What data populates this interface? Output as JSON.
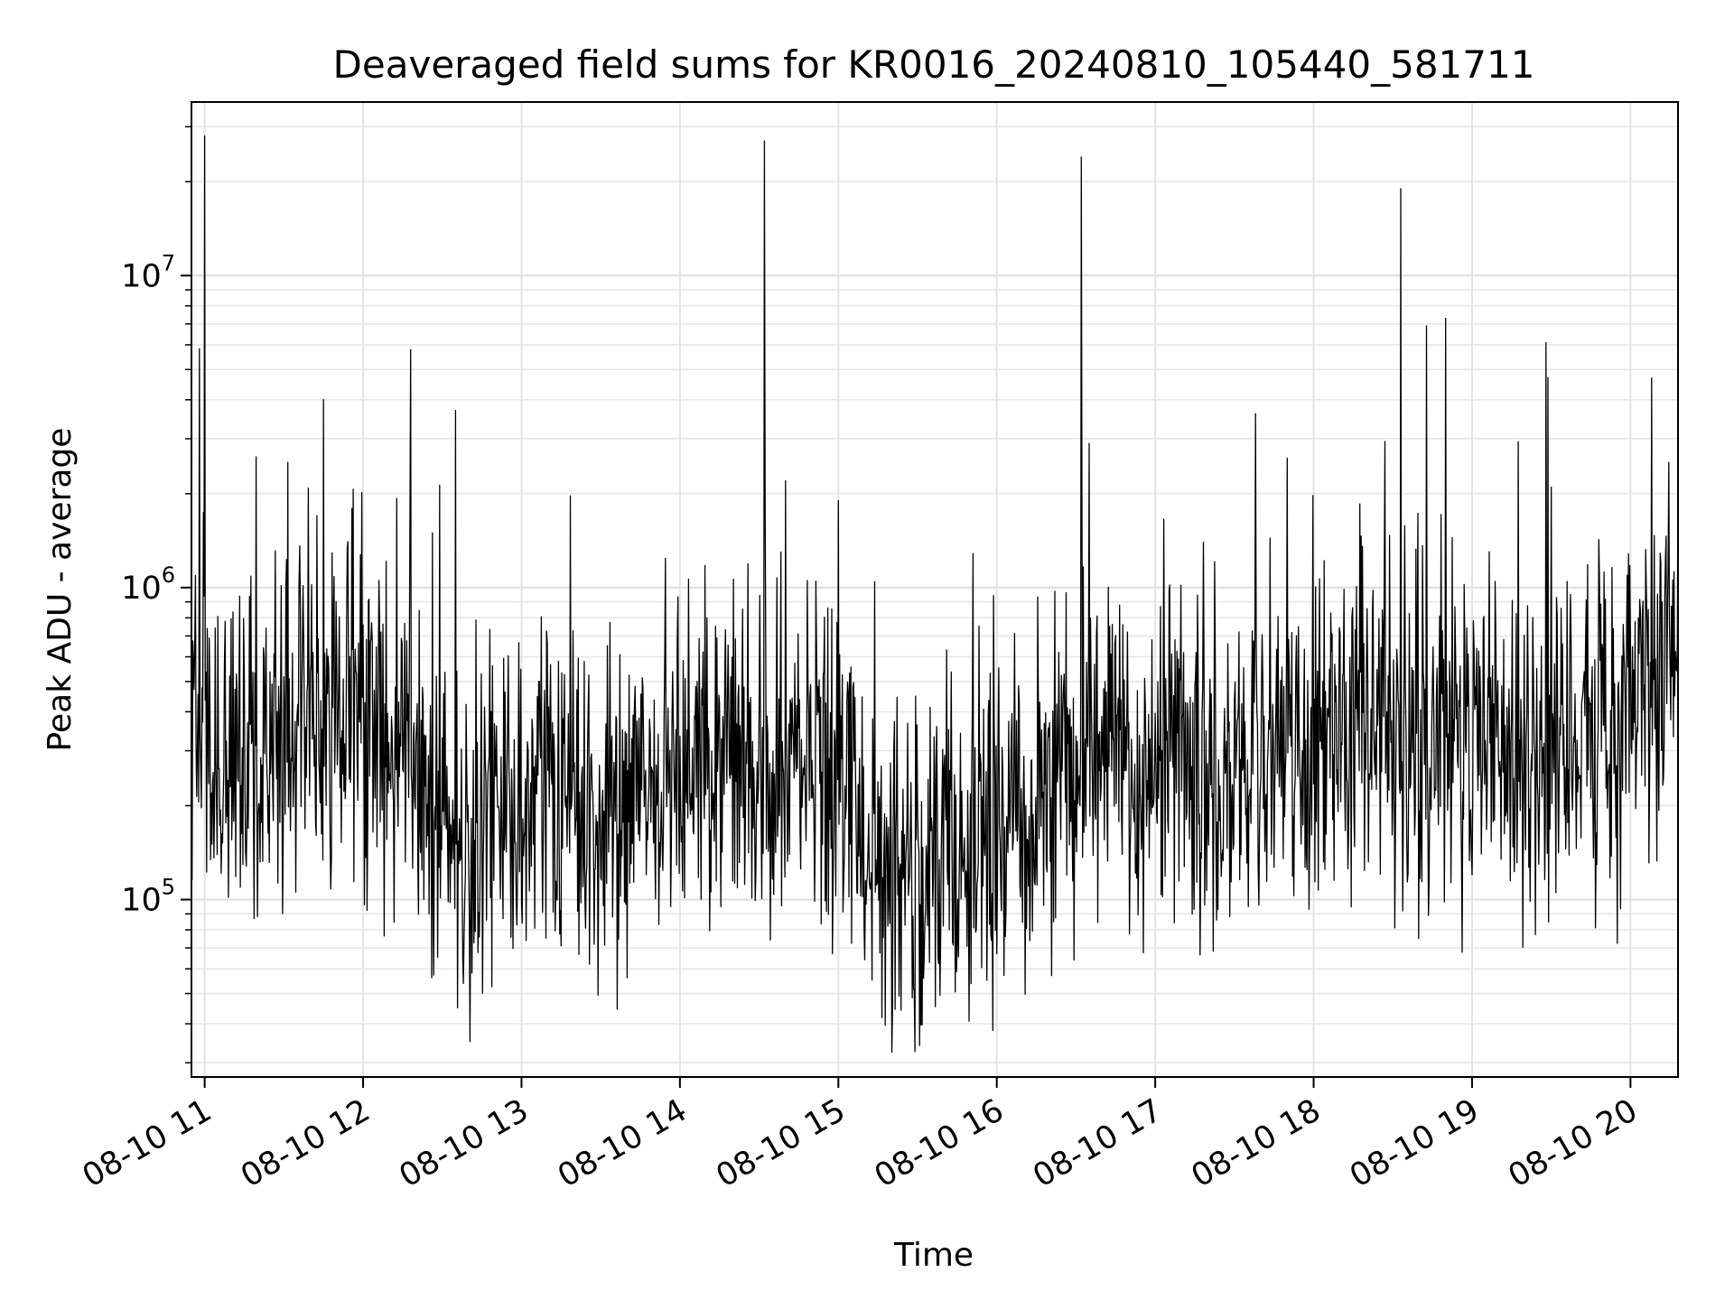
{
  "chart_data": {
    "type": "line",
    "title": "Deaveraged field sums for KR0016_20240810_105440_581711",
    "xlabel": "Time",
    "ylabel": "Peak ADU - average",
    "yscale": "log",
    "grid": true,
    "line_color": "#000000",
    "x_range": [
      "2024-08-10 10:55",
      "2024-08-10 20:18"
    ],
    "y_range": [
      27000,
      36000000
    ],
    "x_ticks": [
      "08-10 11",
      "08-10 12",
      "08-10 13",
      "08-10 14",
      "08-10 15",
      "08-10 16",
      "08-10 17",
      "08-10 18",
      "08-10 19",
      "08-10 20"
    ],
    "y_ticks": [
      {
        "base": "10",
        "exp": "5",
        "value": 100000
      },
      {
        "base": "10",
        "exp": "6",
        "value": 1000000
      },
      {
        "base": "10",
        "exp": "7",
        "value": 10000000
      }
    ],
    "series": [
      {
        "x": [
          "10:55",
          "11:00",
          "11:05",
          "11:10",
          "11:15",
          "11:20",
          "11:25",
          "11:30",
          "11:35",
          "11:40",
          "11:45",
          "11:50",
          "11:55",
          "12:00",
          "12:05",
          "12:10",
          "12:15",
          "12:20",
          "12:25",
          "12:30",
          "12:35",
          "12:40",
          "12:45",
          "12:50",
          "12:55",
          "13:00",
          "13:05",
          "13:10",
          "13:15",
          "13:20",
          "13:25",
          "13:30",
          "13:35",
          "13:40",
          "13:45",
          "13:50",
          "13:55",
          "14:00",
          "14:05",
          "14:10",
          "14:15",
          "14:20",
          "14:25",
          "14:30",
          "14:35",
          "14:40",
          "14:45",
          "14:50",
          "14:55",
          "15:00",
          "15:05",
          "15:10",
          "15:15",
          "15:20",
          "15:25",
          "15:30",
          "15:35",
          "15:40",
          "15:45",
          "15:50",
          "15:55",
          "16:00",
          "16:05",
          "16:10",
          "16:15",
          "16:20",
          "16:25",
          "16:30",
          "16:35",
          "16:40",
          "16:45",
          "16:50",
          "16:55",
          "17:00",
          "17:05",
          "17:10",
          "17:15",
          "17:20",
          "17:25",
          "17:30",
          "17:35",
          "17:40",
          "17:45",
          "17:50",
          "17:55",
          "18:00",
          "18:05",
          "18:10",
          "18:15",
          "18:20",
          "18:25",
          "18:30",
          "18:35",
          "18:40",
          "18:45",
          "18:50",
          "18:55",
          "19:00",
          "19:05",
          "19:10",
          "19:15",
          "19:20",
          "19:25",
          "19:30",
          "19:35",
          "19:40",
          "19:45",
          "19:50",
          "19:55",
          "20:00",
          "20:05",
          "20:10",
          "20:15",
          "20:18"
        ],
        "y": [
          400000,
          350000,
          250000,
          280000,
          350000,
          300000,
          400000,
          350000,
          300000,
          380000,
          420000,
          400000,
          450000,
          380000,
          350000,
          330000,
          300000,
          280000,
          250000,
          200000,
          180000,
          170000,
          160000,
          170000,
          190000,
          200000,
          210000,
          200000,
          190000,
          180000,
          170000,
          180000,
          190000,
          200000,
          210000,
          220000,
          230000,
          240000,
          250000,
          260000,
          280000,
          300000,
          290000,
          270000,
          260000,
          250000,
          250000,
          240000,
          240000,
          250000,
          220000,
          180000,
          150000,
          120000,
          100000,
          90000,
          110000,
          130000,
          150000,
          170000,
          150000,
          140000,
          160000,
          180000,
          210000,
          240000,
          260000,
          270000,
          280000,
          270000,
          260000,
          260000,
          250000,
          240000,
          250000,
          260000,
          270000,
          270000,
          280000,
          280000,
          280000,
          290000,
          290000,
          300000,
          300000,
          310000,
          300000,
          300000,
          300000,
          310000,
          320000,
          320000,
          300000,
          290000,
          300000,
          310000,
          310000,
          320000,
          330000,
          330000,
          320000,
          300000,
          280000,
          300000,
          330000,
          350000,
          380000,
          400000,
          420000,
          450000,
          500000,
          550000,
          600000,
          550000
        ]
      }
    ],
    "peaks": [
      {
        "x": "11:00",
        "y": 28000000
      },
      {
        "x": "11:45",
        "y": 4000000
      },
      {
        "x": "12:35",
        "y": 3700000
      },
      {
        "x": "14:32",
        "y": 27000000
      },
      {
        "x": "14:40",
        "y": 2200000
      },
      {
        "x": "15:00",
        "y": 1900000
      },
      {
        "x": "16:32",
        "y": 24000000
      },
      {
        "x": "16:35",
        "y": 2900000
      },
      {
        "x": "17:50",
        "y": 2600000
      },
      {
        "x": "18:33",
        "y": 19000000
      },
      {
        "x": "18:50",
        "y": 7300000
      },
      {
        "x": "19:28",
        "y": 6100000
      },
      {
        "x": "19:30",
        "y": 2100000
      },
      {
        "x": "20:08",
        "y": 4700000
      }
    ]
  }
}
